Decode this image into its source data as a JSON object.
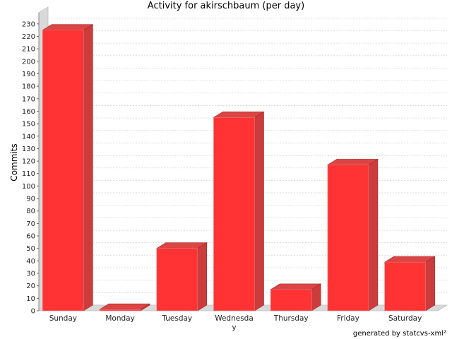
{
  "chart_data": {
    "type": "bar",
    "title": "Activity for akirschbaum (per day)",
    "ylabel": "Commits",
    "xlabel": "",
    "categories": [
      "Sunday",
      "Monday",
      "Tuesday",
      "Wednesday",
      "Thursday",
      "Friday",
      "Saturday"
    ],
    "values": [
      225,
      1,
      50,
      155,
      17,
      117,
      39
    ],
    "ylim": [
      0,
      235
    ],
    "yticks": [
      0,
      10,
      20,
      30,
      40,
      50,
      60,
      70,
      80,
      90,
      100,
      110,
      120,
      130,
      140,
      150,
      160,
      170,
      180,
      190,
      200,
      210,
      220,
      230
    ],
    "grid": true,
    "legend": "none",
    "bar_color": "#ff3333",
    "footer": "generated by statcvs-xml²"
  }
}
